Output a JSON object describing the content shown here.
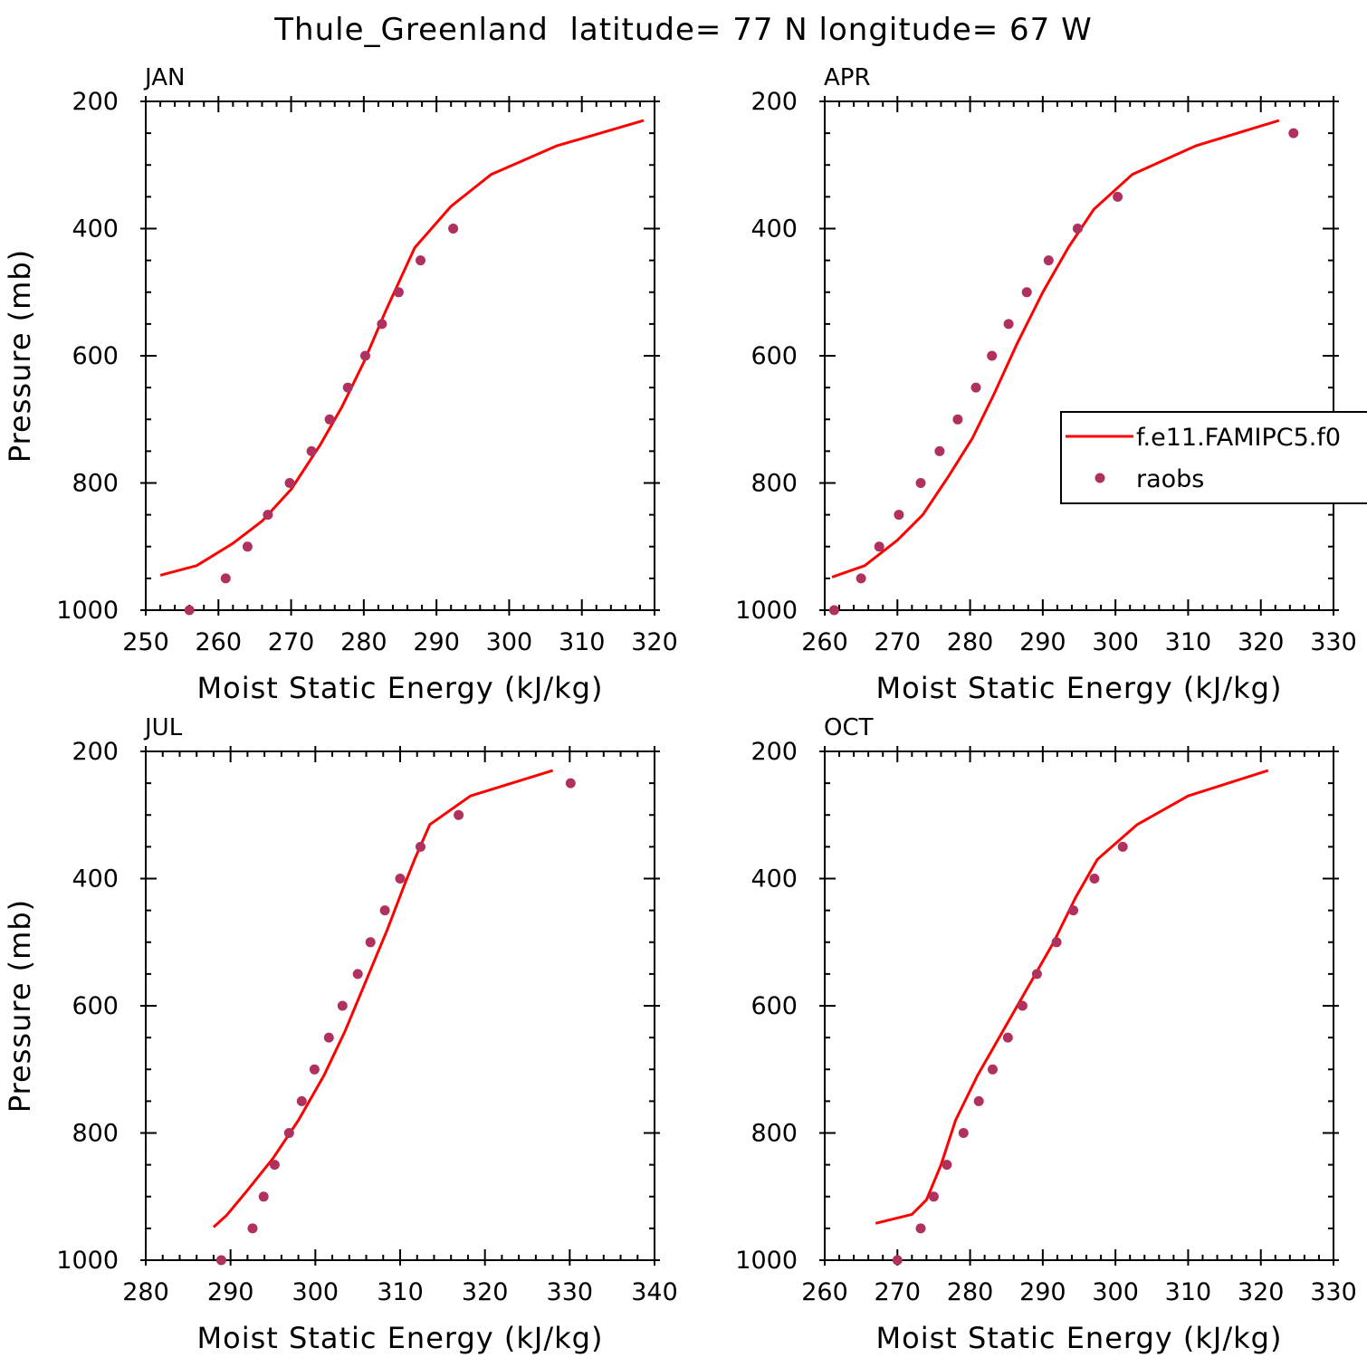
{
  "figure": {
    "title": "Thule_Greenland  latitude= 77 N longitude= 67 W",
    "colors": {
      "model": "#ff0000",
      "obs": "#b03060",
      "axes": "#000000"
    }
  },
  "legend": {
    "entries": [
      {
        "label": "f.e11.FAMIPC5.f0",
        "marker": "line",
        "color": "#ff0000"
      },
      {
        "label": "raobs",
        "marker": "dot",
        "color": "#b03060"
      }
    ]
  },
  "chart_data": [
    {
      "type": "line",
      "panel": "JAN",
      "xlabel": "Moist Static Energy (kJ/kg)",
      "ylabel": "Pressure (mb)",
      "xlim": [
        250,
        320
      ],
      "ylim": [
        1000,
        200
      ],
      "xticks": [
        250,
        260,
        270,
        280,
        290,
        300,
        310,
        320
      ],
      "yticks": [
        200,
        400,
        600,
        800,
        1000
      ],
      "series": [
        {
          "name": "f.e11.FAMIPC5.f0",
          "kind": "line",
          "x": [
            252,
            257,
            262,
            266,
            270,
            274,
            277,
            280,
            283,
            287,
            292,
            297.5,
            306.5,
            318.5
          ],
          "y": [
            945,
            930,
            895,
            860,
            810,
            740,
            680,
            610,
            530,
            430,
            365,
            315,
            270,
            230
          ]
        },
        {
          "name": "raobs",
          "kind": "scatter",
          "x": [
            256,
            261,
            264,
            266.8,
            269.8,
            272.8,
            275.3,
            277.8,
            280.2,
            282.5,
            284.8,
            287.8,
            292.3
          ],
          "y": [
            1000,
            950,
            900,
            850,
            800,
            750,
            700,
            650,
            600,
            550,
            500,
            450,
            400
          ]
        }
      ]
    },
    {
      "type": "line",
      "panel": "APR",
      "xlabel": "Moist Static Energy (kJ/kg)",
      "ylabel": "",
      "xlim": [
        260,
        330
      ],
      "ylim": [
        1000,
        200
      ],
      "xticks": [
        260,
        270,
        280,
        290,
        300,
        310,
        320,
        330
      ],
      "yticks": [
        200,
        400,
        600,
        800,
        1000
      ],
      "series": [
        {
          "name": "f.e11.FAMIPC5.f0",
          "kind": "line",
          "x": [
            261,
            265.5,
            270,
            273.5,
            277,
            280.3,
            283.3,
            286.5,
            290,
            293.5,
            297,
            302.3,
            311,
            322.5
          ],
          "y": [
            948,
            930,
            890,
            850,
            790,
            730,
            660,
            580,
            500,
            430,
            370,
            315,
            270,
            230
          ]
        },
        {
          "name": "raobs",
          "kind": "scatter",
          "x": [
            261.3,
            265,
            267.5,
            270.2,
            273.2,
            275.8,
            278.3,
            280.8,
            283,
            285.3,
            287.8,
            290.8,
            294.8,
            300.3,
            324.5
          ],
          "y": [
            1000,
            950,
            900,
            850,
            800,
            750,
            700,
            650,
            600,
            550,
            500,
            450,
            400,
            350,
            250
          ]
        }
      ]
    },
    {
      "type": "line",
      "panel": "JUL",
      "xlabel": "Moist Static Energy (kJ/kg)",
      "ylabel": "Pressure (mb)",
      "xlim": [
        280,
        340
      ],
      "ylim": [
        1000,
        200
      ],
      "xticks": [
        280,
        290,
        300,
        310,
        320,
        330,
        340
      ],
      "yticks": [
        200,
        400,
        600,
        800,
        1000
      ],
      "series": [
        {
          "name": "f.e11.FAMIPC5.f0",
          "kind": "line",
          "x": [
            288,
            289.5,
            292,
            295,
            298,
            301,
            303.5,
            306,
            308.5,
            310.5,
            311.7,
            313.5,
            318.3,
            328
          ],
          "y": [
            948,
            930,
            890,
            840,
            780,
            710,
            640,
            560,
            480,
            410,
            370,
            315,
            270,
            230
          ]
        },
        {
          "name": "raobs",
          "kind": "scatter",
          "x": [
            288.9,
            292.6,
            293.9,
            295.2,
            296.9,
            298.4,
            299.9,
            301.6,
            303.2,
            305,
            306.5,
            308.2,
            310,
            312.4,
            316.9,
            330.1
          ],
          "y": [
            1000,
            950,
            900,
            850,
            800,
            750,
            700,
            650,
            600,
            550,
            500,
            450,
            400,
            350,
            300,
            250
          ]
        }
      ]
    },
    {
      "type": "line",
      "panel": "OCT",
      "xlabel": "Moist Static Energy (kJ/kg)",
      "ylabel": "",
      "xlim": [
        260,
        330
      ],
      "ylim": [
        1000,
        200
      ],
      "xticks": [
        260,
        270,
        280,
        290,
        300,
        310,
        320,
        330
      ],
      "yticks": [
        200,
        400,
        600,
        800,
        1000
      ],
      "series": [
        {
          "name": "f.e11.FAMIPC5.f0",
          "kind": "line",
          "x": [
            267,
            272,
            274,
            276,
            278,
            281,
            284.5,
            288,
            291.5,
            294.5,
            297.5,
            303,
            310,
            321
          ],
          "y": [
            942,
            928,
            905,
            850,
            780,
            710,
            640,
            570,
            500,
            430,
            370,
            315,
            270,
            230
          ]
        },
        {
          "name": "raobs",
          "kind": "scatter",
          "x": [
            270,
            273.2,
            275,
            276.8,
            279.1,
            281.2,
            283.1,
            285.2,
            287.2,
            289.2,
            291.9,
            294.2,
            297.1,
            301
          ],
          "y": [
            1000,
            950,
            900,
            850,
            800,
            750,
            700,
            650,
            600,
            550,
            500,
            450,
            400,
            350
          ]
        }
      ]
    }
  ]
}
